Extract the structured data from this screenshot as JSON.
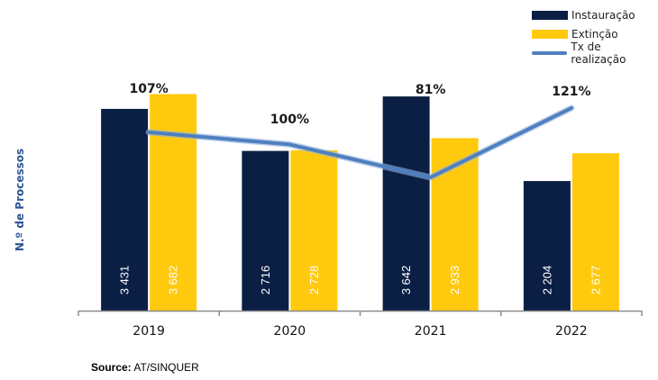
{
  "chart_data": {
    "type": "bar",
    "categories": [
      "2019",
      "2020",
      "2021",
      "2022"
    ],
    "series": [
      {
        "name": "Instauração",
        "values": [
          3431,
          2716,
          3642,
          2204
        ],
        "labels": [
          "3 431",
          "2 716",
          "3 642",
          "2 204"
        ],
        "color": "#0b1f45"
      },
      {
        "name": "Extinção",
        "values": [
          3682,
          2728,
          2933,
          2677
        ],
        "labels": [
          "3 682",
          "2 728",
          "2 933",
          "2 677"
        ],
        "color": "#ffc90e"
      }
    ],
    "line_series": {
      "name": "Tx de realização",
      "values": [
        107,
        100,
        81,
        121
      ],
      "labels": [
        "107%",
        "100%",
        "81%",
        "121%"
      ],
      "color": "#4f7fbf"
    },
    "ylabel": "N.º de Processos",
    "ylim": [
      0,
      3950
    ],
    "legend_position": "top-right",
    "grid": false
  },
  "source": {
    "label": "Source:",
    "text": "AT/SINQUER"
  }
}
